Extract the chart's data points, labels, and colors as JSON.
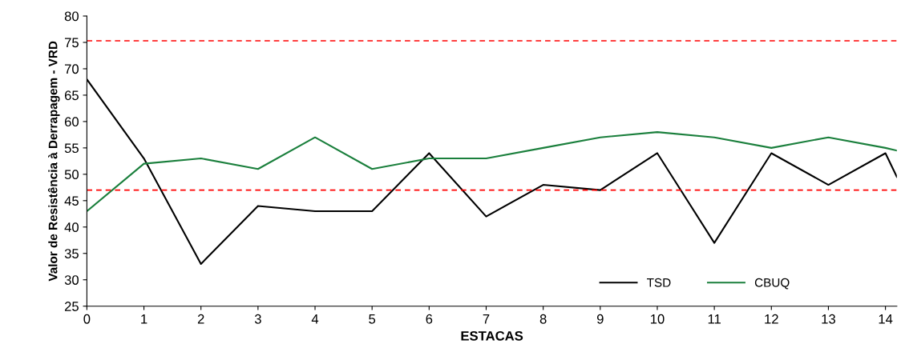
{
  "chart_data": {
    "type": "line",
    "xlabel": "ESTACAS",
    "ylabel": "Valor de Resistência à Derrapagem - VRD",
    "xlim": [
      0,
      14.2
    ],
    "xticks": [
      0,
      1,
      2,
      3,
      4,
      5,
      6,
      7,
      8,
      9,
      10,
      11,
      12,
      13,
      14
    ],
    "ylim": [
      25,
      80
    ],
    "yticks": [
      25,
      30,
      35,
      40,
      45,
      50,
      55,
      60,
      65,
      70,
      75,
      80
    ],
    "x": [
      0,
      1,
      2,
      3,
      4,
      5,
      6,
      7,
      8,
      9,
      10,
      11,
      12,
      13,
      14,
      14.2
    ],
    "series": [
      {
        "name": "TSD",
        "color": "#000000",
        "values": [
          68,
          53,
          33,
          44,
          43,
          43,
          54,
          42,
          48,
          47,
          54,
          37,
          54,
          48,
          54,
          49.5
        ]
      },
      {
        "name": "CBUQ",
        "color": "#1a7f3c",
        "values": [
          43,
          52,
          53,
          51,
          57,
          51,
          53,
          53,
          55,
          57,
          58,
          57,
          55,
          57,
          55,
          54.5
        ]
      }
    ],
    "ref_lines": [
      {
        "axis": "y",
        "value": 75.3,
        "color": "#ff0000",
        "line_style": "dashed"
      },
      {
        "axis": "y",
        "value": 47,
        "color": "#ff0000",
        "line_style": "dashed"
      }
    ],
    "grid": false,
    "legend": "bottom right",
    "marker": "none",
    "line_style": "solid"
  }
}
